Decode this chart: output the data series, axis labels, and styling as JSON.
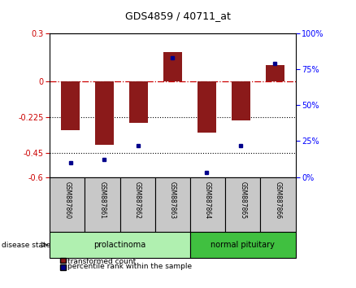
{
  "title": "GDS4859 / 40711_at",
  "samples": [
    "GSM887860",
    "GSM887861",
    "GSM887862",
    "GSM887863",
    "GSM887864",
    "GSM887865",
    "GSM887866"
  ],
  "red_values": [
    -0.305,
    -0.4,
    -0.26,
    0.18,
    -0.32,
    -0.245,
    0.1
  ],
  "blue_values": [
    10,
    12,
    22,
    83,
    3,
    22,
    79
  ],
  "ylim_left": [
    -0.6,
    0.3
  ],
  "ylim_right": [
    0,
    100
  ],
  "left_ticks": [
    0.3,
    0,
    -0.225,
    -0.45,
    -0.6
  ],
  "right_ticks": [
    100,
    75,
    50,
    25,
    0
  ],
  "hlines": [
    -0.225,
    -0.45
  ],
  "disease_groups": [
    {
      "label": "prolactinoma",
      "samples_range": [
        0,
        3
      ],
      "color": "#b0f0b0"
    },
    {
      "label": "normal pituitary",
      "samples_range": [
        4,
        6
      ],
      "color": "#40c040"
    }
  ],
  "bar_width": 0.55,
  "red_color": "#8B1A1A",
  "blue_color": "#00008B",
  "dashed_line_color": "#cc0000",
  "xtick_box_color": "#c8c8c8",
  "disease_label": "disease state"
}
